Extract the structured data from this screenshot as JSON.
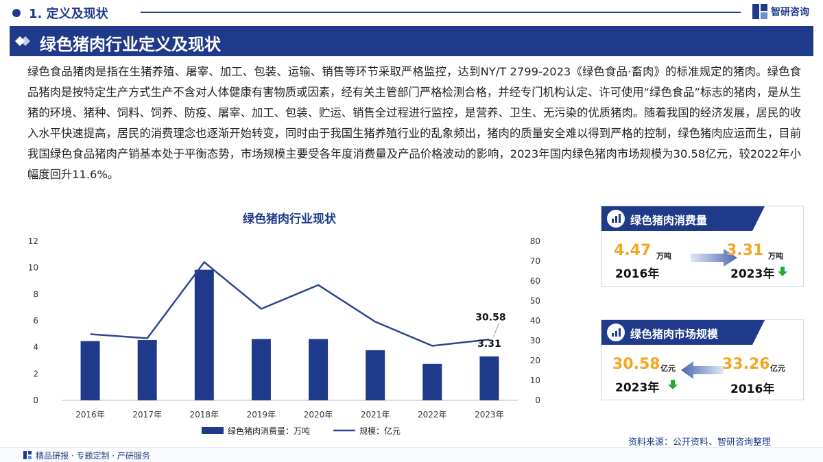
{
  "section": {
    "title": "1. 定义及现状"
  },
  "logo": {
    "text": "智研咨询"
  },
  "banner": {
    "title": "绿色猪肉行业定义及现状"
  },
  "description": "绿色食品猪肉是指在生猪养殖、屠宰、加工、包装、运输、销售等环节采取严格监控，达到NY/T 2799-2023《绿色食品·畜肉》的标准规定的猪肉。绿色食品猪肉是按特定生产方式生产不含对人体健康有害物质或因素，经有关主管部门严格检测合格，并经专门机构认定、许可使用“绿色食品”标志的猪肉，是从生猪的环境、猪种、饲料、饲养、防疫、屠宰、加工、包装、贮运、销售全过程进行监控，是营养、卫生、无污染的优质猪肉。随着我国的经济发展，居民的收入水平快速提高，居民的消费理念也逐渐开始转变，同时由于我国生猪养殖行业的乱象频出，猪肉的质量安全难以得到严格的控制，绿色猪肉应运而生，目前我国绿色食品猪肉产销基本处于平衡态势，市场规模主要受各年度消费量及产品价格波动的影响，2023年国内绿色猪肉市场规模为30.58亿元，较2022年小幅度回升11.6%。",
  "chart_data": {
    "type": "bar",
    "title": "绿色猪肉行业现状",
    "categories": [
      "2016年",
      "2017年",
      "2018年",
      "2019年",
      "2020年",
      "2021年",
      "2022年",
      "2023年"
    ],
    "series": [
      {
        "name": "绿色猪肉消费量：万吨",
        "type": "bar",
        "axis": "left",
        "values": [
          4.47,
          4.55,
          9.85,
          4.62,
          4.62,
          3.78,
          2.75,
          3.31
        ]
      },
      {
        "name": "规模：亿元",
        "type": "line",
        "axis": "right",
        "values": [
          33.26,
          31.2,
          69.5,
          46.0,
          58.0,
          39.5,
          27.4,
          30.58
        ]
      }
    ],
    "y_left": {
      "min": 0,
      "max": 12,
      "ticks": [
        0,
        2,
        4,
        6,
        8,
        10,
        12
      ]
    },
    "y_right": {
      "min": 0,
      "max": 80,
      "ticks": [
        0,
        10,
        20,
        30,
        40,
        50,
        60,
        70,
        80
      ]
    },
    "annotations": {
      "line_last": "30.58",
      "bar_last": "3.31"
    },
    "colors": {
      "bar": "#1f3a8a",
      "line": "#2b4590"
    },
    "legend_position": "bottom"
  },
  "cards": {
    "consumption": {
      "title": "绿色猪肉消费量",
      "left_value": "4.47",
      "left_unit": "万吨",
      "left_year": "2016年",
      "right_value": "3.31",
      "right_unit": "万吨",
      "right_year": "2023年"
    },
    "market": {
      "title": "绿色猪肉市场规模",
      "left_value": "30.58",
      "left_unit": "亿元",
      "left_year": "2023年",
      "right_value": "33.26",
      "right_unit": "亿元",
      "right_year": "2016年"
    }
  },
  "source": "资料来源：公开资料、智研咨询整理",
  "footer": "精品研报 · 专题定制 · 产研服务",
  "colors": {
    "primary": "#1f3a8a",
    "accent": "#f5a623",
    "down": "#1faa3a"
  }
}
